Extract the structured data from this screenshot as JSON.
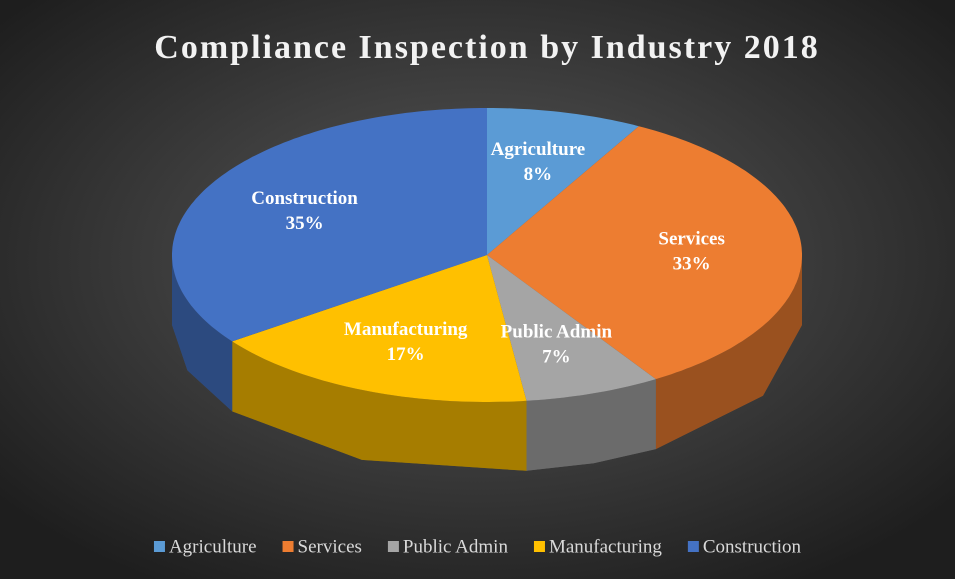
{
  "chart_data": {
    "type": "pie3d",
    "title": "Compliance Inspection by Industry 2018",
    "categories": [
      "Agriculture",
      "Services",
      "Public Admin",
      "Manufacturing",
      "Construction"
    ],
    "values": [
      8,
      33,
      7,
      17,
      35
    ],
    "value_labels": [
      "8%",
      "33%",
      "7%",
      "17%",
      "35%"
    ],
    "colors": [
      "#5b9bd5",
      "#ed7d31",
      "#a5a5a5",
      "#ffc000",
      "#4472c4"
    ],
    "legend": "bottom"
  }
}
